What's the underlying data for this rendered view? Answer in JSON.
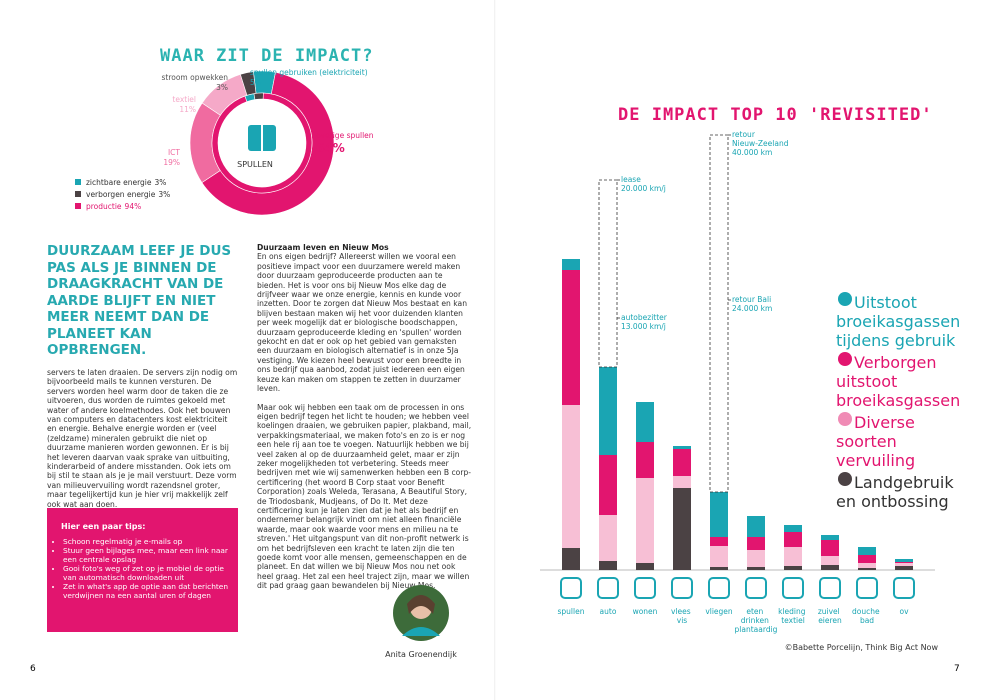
{
  "page_left": {
    "title": "WAAR ZIT DE IMPACT?",
    "headline": "DUURZAAM LEEF JE DUS PAS ALS JE BINNEN DE DRAAGKRACHT VAN DE AARDE BLIJFT EN NIET MEER NEEMT DAN DE PLANEET KAN OPBRENGEN.",
    "column_left": "servers te laten draaien. De servers zijn nodig om bijvoorbeeld mails te kunnen versturen. De servers worden heel warm door de taken die ze uitvoeren, dus worden de ruimtes gekoeld met water of andere koelmethodes. Ook het bouwen van computers en datacenters kost elektriciteit en energie. Behalve energie worden er (veel (zeldzame) mineralen gebruikt die niet op duurzame manieren worden gewonnen. Er is bij het leveren daarvan vaak sprake van uitbuiting, kinderarbeid of andere misstanden. Ook iets om bij stil te staan als je je mail verstuurt. Deze vorm van milieuvervuiling wordt razendsnel groter, maar tegelijkertijd kun je hier vrij makkelijk zelf ook wat aan doen.",
    "tips": {
      "title": "Hier een paar tips:",
      "items": [
        "Schoon regelmatig je e-mails op",
        "Stuur geen bijlages mee, maar een link naar een centrale opslag",
        "Gooi foto's weg of zet op je mobiel de optie van automatisch downloaden uit",
        "Zet in what's app de optie aan dat berichten verdwijnen na een aantal uren of dagen"
      ]
    },
    "column_middle": {
      "heading": "Duurzaam leven en Nieuw Mos",
      "paragraphs": [
        "En ons eigen bedrijf? Allereerst willen we vooral een positieve impact voor een duurzamere wereld maken door duurzaam geproduceerde producten aan te bieden. Het is voor ons bij Nieuw Mos elke dag de drijfveer waar we onze energie, kennis en kunde voor inzetten. Door te zorgen dat Nieuw Mos bestaat en kan blijven bestaan maken wij het voor duizenden klanten per week mogelijk dat er biologische boodschappen, duurzaam geproduceerde kleding en 'spullen' worden gekocht en dat er ook op het gebied van gemaksten een duurzaam en biologisch alternatief is in onze 5Ja vestiging. We kiezen heel bewust voor een breedte in ons bedrijf qua aanbod, zodat juist iedereen een eigen keuze kan maken om stappen te zetten in duurzamer leven.",
        "Maar ook wij hebben een taak om de processen in ons eigen bedrijf tegen het licht te houden; we hebben veel koelingen draaien, we gebruiken papier, plakband, mail, verpakkingsmateriaal, we maken foto's en zo is er nog een hele rij aan toe te voegen. Natuurlijk hebben we bij veel zaken al op de duurzaamheid gelet, maar er zijn zeker mogelijkheden tot verbetering. Steeds meer bedrijven met wie wij samenwerken hebben een B corp-certificering (het woord B Corp staat voor Benefit Corporation) zoals Weleda, Terasana, A Beautiful Story, de Triodosbank, Mudjeans, of Do It. Met deze certificering kun je laten zien dat je het als bedrijf en ondernemer belangrijk vindt om niet alleen financiële waarde, maar ook waarde voor mens en milieu na te streven.' Het uitgangspunt van dit non-profit netwerk is om het bedrijfsleven een kracht te laten zijn die ten goede komt voor alle mensen, gemeenschappen en de planeet. En dat willen we bij Nieuw Mos nou net ook heel graag. Het zal een heel traject zijn, maar we willen dit pad graag gaan bewandelen bij Nieuw Mos."
      ]
    },
    "author": "Anita Groenendijk",
    "page_number": 6
  },
  "page_right": {
    "credit": "©Babette Porcelijn, Think Big Act Now",
    "page_number": 7
  },
  "chart_data": [
    {
      "type": "donut",
      "center_label": "SPULLEN",
      "categories": [
        "spullen gebruiken (elektriciteit)",
        "overige spullen",
        "ICT",
        "textiel",
        "stroom opwekken"
      ],
      "values": [
        5,
        64,
        19,
        11,
        3
      ],
      "value_labels": [
        "5%",
        "64%",
        "19%",
        "11%",
        "3%"
      ],
      "colors": [
        "#1aa5b3",
        "#e2156f",
        "#f06ba0",
        "#f5a9c8",
        "#4b4244"
      ],
      "inner": {
        "categories": [
          "zichtbare energie",
          "verborgen energie",
          "productie"
        ],
        "values": [
          3,
          3,
          94
        ],
        "value_labels": [
          "3%",
          "3%",
          "94%"
        ],
        "colors": [
          "#1aa5b3",
          "#4b4244",
          "#e2156f"
        ]
      }
    },
    {
      "type": "stacked_bar",
      "title": "DE IMPACT TOP 10 'REVISITED'",
      "categories": [
        "spullen",
        "auto",
        "wonen",
        "vlees vis",
        "vliegen",
        "eten drinken plantaardig",
        "kleding textiel",
        "zuivel eieren",
        "douche bad",
        "ov"
      ],
      "ylim": [
        0,
        440
      ],
      "series": [
        {
          "name": "Landgebruik en ontbossing",
          "color": "#4b4244",
          "values": [
            22,
            9,
            7,
            82,
            3,
            3,
            4,
            5,
            2,
            4
          ]
        },
        {
          "name": "Diverse soorten vervuiling",
          "color": "#f7bfd5",
          "values": [
            143,
            46,
            85,
            12,
            21,
            17,
            19,
            9,
            5,
            3
          ]
        },
        {
          "name": "Verborgen uitstoot broeikasgassen",
          "color": "#e2156f",
          "values": [
            135,
            60,
            36,
            27,
            9,
            13,
            15,
            16,
            8,
            1
          ]
        },
        {
          "name": "Uitstoot broeikasgassen tijdens gebruik",
          "color": "#1aa5b3",
          "values": [
            11,
            88,
            40,
            3,
            45,
            21,
            7,
            5,
            8,
            3
          ]
        }
      ],
      "annotations": [
        {
          "category": "auto",
          "lines": [
            "autobezitter",
            "13.000 km/j"
          ],
          "value": 252
        },
        {
          "category": "auto",
          "lines": [
            "lease",
            "20.000 km/j"
          ],
          "value": 390
        },
        {
          "category": "vliegen",
          "lines": [
            "retour Bali",
            "24.000 km"
          ],
          "value": 270
        },
        {
          "category": "vliegen",
          "lines": [
            "retour",
            "Nieuw-Zeeland",
            "40.000 km"
          ],
          "value": 435
        }
      ]
    }
  ]
}
